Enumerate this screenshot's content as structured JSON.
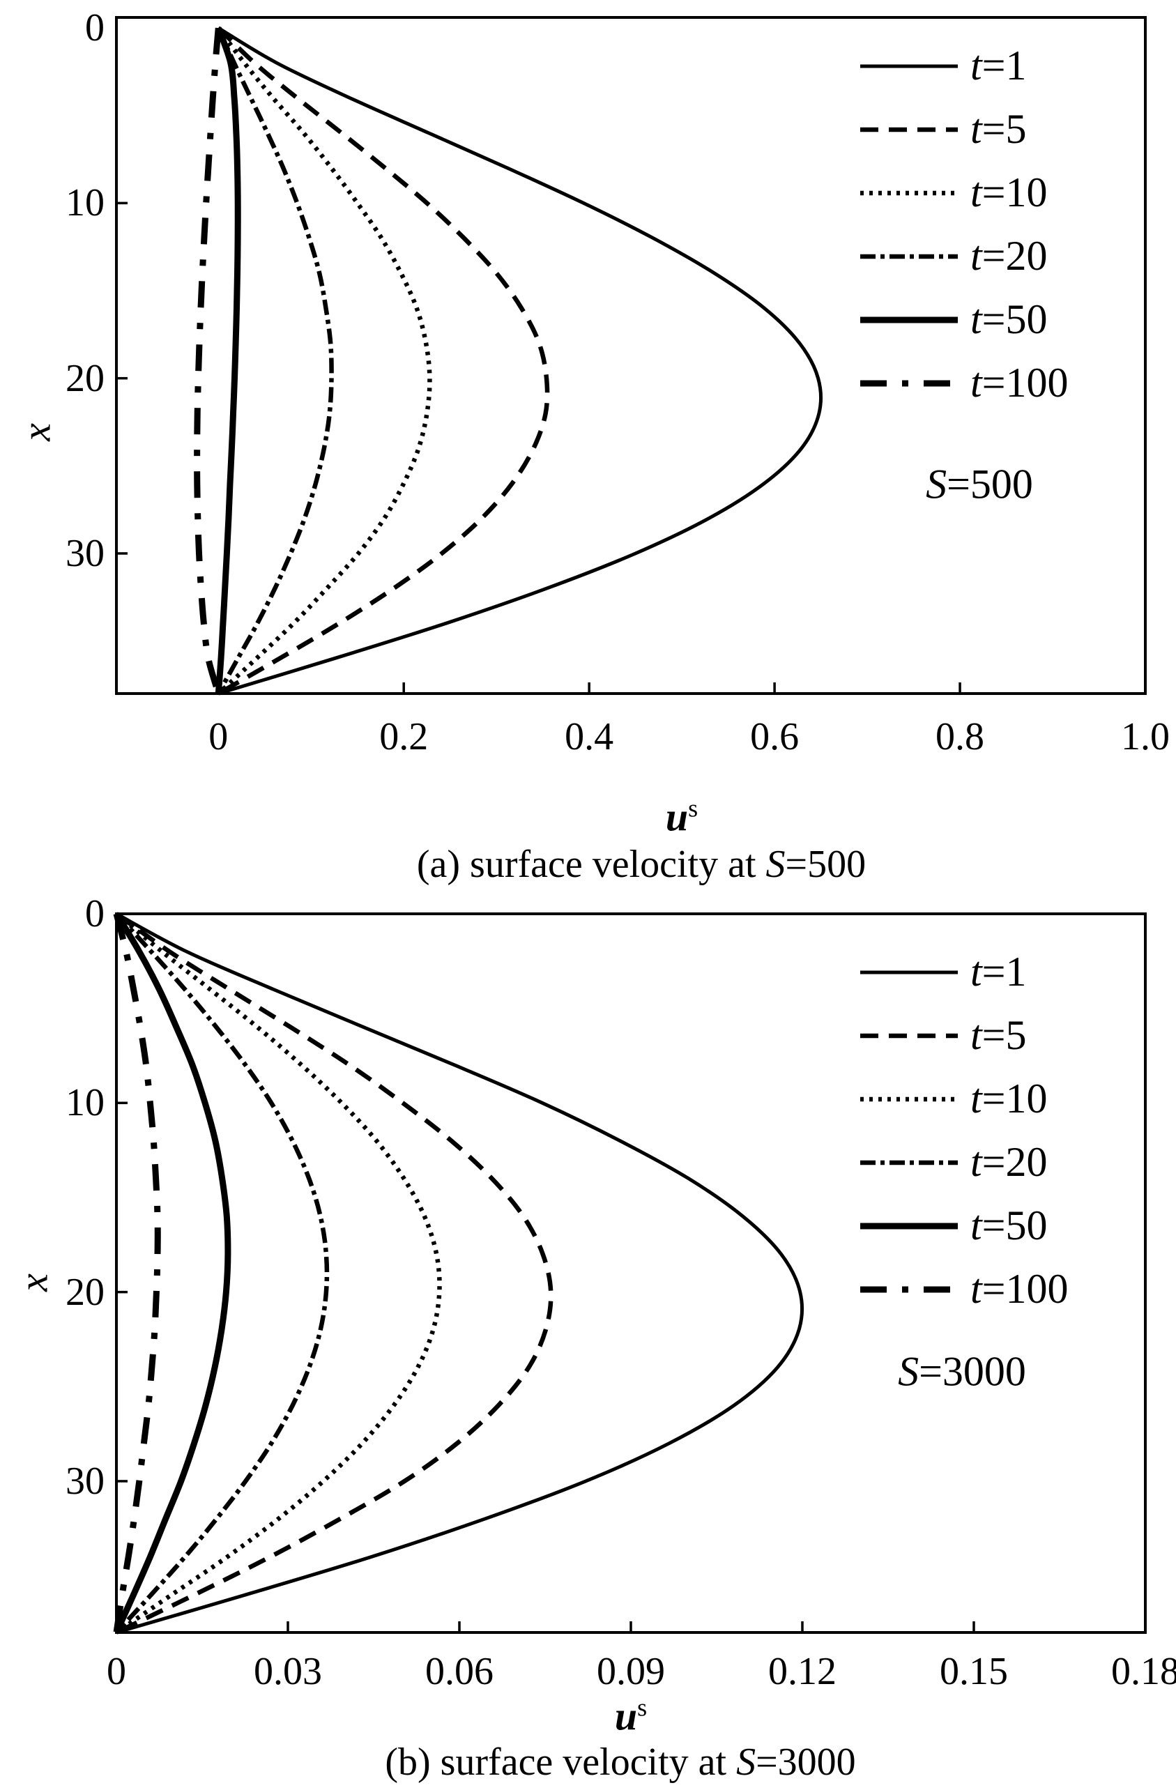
{
  "figure": {
    "captions": [
      {
        "prefix": "(a) surface velocity at ",
        "var": "S",
        "rest": "=500"
      },
      {
        "prefix": "(b) surface velocity at ",
        "var": "S",
        "rest": "=3000"
      }
    ]
  },
  "chart_data": [
    {
      "type": "line",
      "panel": "a",
      "annotation": {
        "var": "S",
        "rest": "=500"
      },
      "xlabel": {
        "var": "u",
        "sup": "s"
      },
      "ylabel": "x",
      "x_axis": {
        "min": -0.11,
        "max": 1.0,
        "tick_vals": [
          0,
          0.2,
          0.4,
          0.6,
          0.8,
          1.0
        ],
        "tick_labels": [
          "0",
          "0.2",
          "0.4",
          "0.6",
          "0.8",
          "1.0"
        ]
      },
      "y_axis": {
        "min": -0.6,
        "max": 38,
        "inverted": true,
        "tick_vals": [
          0,
          10,
          20,
          30
        ],
        "tick_labels": [
          "0",
          "10",
          "20",
          "30"
        ]
      },
      "legend_position": "upper right",
      "grid": false,
      "x_samples": [
        0,
        2,
        4,
        6,
        8,
        10,
        12,
        14,
        16,
        18,
        20,
        22,
        24,
        26,
        28,
        30,
        32,
        34,
        36,
        38
      ],
      "series": [
        {
          "name": "t=1",
          "legend_var": "t",
          "legend_rest": "=1",
          "style": "solid",
          "width": 5,
          "values": [
            0,
            0.063,
            0.142,
            0.227,
            0.312,
            0.394,
            0.469,
            0.535,
            0.589,
            0.627,
            0.647,
            0.648,
            0.629,
            0.589,
            0.529,
            0.45,
            0.354,
            0.245,
            0.125,
            0
          ]
        },
        {
          "name": "t=5",
          "legend_var": "t",
          "legend_rest": "=5",
          "style": "dashed",
          "width": 6.5,
          "values": [
            0,
            0.039,
            0.085,
            0.133,
            0.18,
            0.225,
            0.265,
            0.3,
            0.327,
            0.346,
            0.354,
            0.353,
            0.34,
            0.317,
            0.284,
            0.241,
            0.189,
            0.13,
            0.066,
            0
          ]
        },
        {
          "name": "t=10",
          "legend_var": "t",
          "legend_rest": "=10",
          "style": "dotted",
          "width": 6.5,
          "values": [
            0,
            0.028,
            0.059,
            0.092,
            0.122,
            0.15,
            0.176,
            0.197,
            0.214,
            0.224,
            0.228,
            0.225,
            0.216,
            0.2,
            0.179,
            0.151,
            0.117,
            0.081,
            0.041,
            0
          ]
        },
        {
          "name": "t=20",
          "legend_var": "t",
          "legend_rest": "=20",
          "style": "dashdot",
          "width": 6.5,
          "values": [
            0,
            0.017,
            0.035,
            0.053,
            0.07,
            0.085,
            0.098,
            0.109,
            0.116,
            0.121,
            0.122,
            0.12,
            0.114,
            0.105,
            0.093,
            0.078,
            0.061,
            0.042,
            0.021,
            0
          ]
        },
        {
          "name": "t=50",
          "legend_var": "t",
          "legend_rest": "=50",
          "style": "solid",
          "width": 9,
          "values": [
            0,
            0.0132,
            0.0172,
            0.0193,
            0.0205,
            0.021,
            0.0209,
            0.0205,
            0.0197,
            0.0187,
            0.0175,
            0.016,
            0.0144,
            0.0126,
            0.011,
            0.0091,
            0.0071,
            0.005,
            0.0028,
            0
          ]
        },
        {
          "name": "t=100",
          "legend_var": "t",
          "legend_rest": "=100",
          "style": "longdashdot",
          "width": 9,
          "values": [
            0,
            -0.0032,
            -0.006,
            -0.0085,
            -0.0109,
            -0.0132,
            -0.0153,
            -0.0173,
            -0.019,
            -0.0205,
            -0.0217,
            -0.0226,
            -0.023,
            -0.0229,
            -0.0222,
            -0.0209,
            -0.0187,
            -0.0157,
            -0.0109,
            0
          ]
        }
      ]
    },
    {
      "type": "line",
      "panel": "b",
      "annotation": {
        "var": "S",
        "rest": "=3000"
      },
      "xlabel": {
        "var": "u",
        "sup": "s"
      },
      "ylabel": "x",
      "x_axis": {
        "min": 0,
        "max": 0.18,
        "tick_vals": [
          0,
          0.03,
          0.06,
          0.09,
          0.12,
          0.15,
          0.18
        ],
        "tick_labels": [
          "0",
          "0.03",
          "0.06",
          "0.09",
          "0.12",
          "0.15",
          "0.18"
        ]
      },
      "y_axis": {
        "min": 0,
        "max": 38,
        "inverted": true,
        "tick_vals": [
          0,
          10,
          20,
          30
        ],
        "tick_labels": [
          "0",
          "10",
          "20",
          "30"
        ]
      },
      "legend_position": "upper right",
      "grid": false,
      "x_samples": [
        0,
        2,
        4,
        6,
        8,
        10,
        12,
        14,
        16,
        18,
        20,
        22,
        24,
        26,
        28,
        30,
        32,
        34,
        36,
        38
      ],
      "series": [
        {
          "name": "t=1",
          "legend_var": "t",
          "legend_rest": "=1",
          "style": "solid",
          "width": 5,
          "values": [
            0,
            0.0123,
            0.0275,
            0.0433,
            0.0592,
            0.0745,
            0.0881,
            0.1001,
            0.1096,
            0.1163,
            0.1196,
            0.1194,
            0.1156,
            0.108,
            0.0967,
            0.0821,
            0.0644,
            0.0446,
            0.0227,
            0
          ]
        },
        {
          "name": "t=5",
          "legend_var": "t",
          "legend_rest": "=5",
          "style": "dashed",
          "width": 6.5,
          "values": [
            0,
            0.0093,
            0.0198,
            0.0305,
            0.0408,
            0.0501,
            0.0586,
            0.0657,
            0.0712,
            0.0746,
            0.076,
            0.0751,
            0.0721,
            0.0668,
            0.0596,
            0.0504,
            0.0391,
            0.0269,
            0.0137,
            0
          ]
        },
        {
          "name": "t=10",
          "legend_var": "t",
          "legend_rest": "=10",
          "style": "dotted",
          "width": 6.5,
          "values": [
            0,
            0.008,
            0.0164,
            0.0247,
            0.0324,
            0.0394,
            0.0455,
            0.0503,
            0.0539,
            0.056,
            0.0565,
            0.0554,
            0.0527,
            0.0485,
            0.043,
            0.0362,
            0.0283,
            0.0194,
            0.0097,
            0
          ]
        },
        {
          "name": "t=20",
          "legend_var": "t",
          "legend_rest": "=20",
          "style": "dashdot",
          "width": 6.5,
          "values": [
            0,
            0.0061,
            0.012,
            0.0175,
            0.0226,
            0.0271,
            0.0308,
            0.0337,
            0.0357,
            0.0367,
            0.0367,
            0.0357,
            0.0337,
            0.0308,
            0.0271,
            0.0226,
            0.0175,
            0.012,
            0.0061,
            0
          ]
        },
        {
          "name": "t=50",
          "legend_var": "t",
          "legend_rest": "=50",
          "style": "solid",
          "width": 9,
          "values": [
            0,
            0.004,
            0.0075,
            0.0105,
            0.0133,
            0.0155,
            0.0173,
            0.0185,
            0.0193,
            0.0195,
            0.0192,
            0.0184,
            0.0172,
            0.0156,
            0.0136,
            0.0113,
            0.0086,
            0.0059,
            0.003,
            0
          ]
        },
        {
          "name": "t=100",
          "legend_var": "t",
          "legend_rest": "=100",
          "style": "longdashdot",
          "width": 9,
          "values": [
            0,
            0.0017,
            0.003,
            0.0042,
            0.0052,
            0.0059,
            0.0065,
            0.0069,
            0.0072,
            0.0072,
            0.007,
            0.0067,
            0.0062,
            0.0056,
            0.0048,
            0.004,
            0.0031,
            0.0021,
            0.001,
            0
          ]
        }
      ]
    }
  ]
}
